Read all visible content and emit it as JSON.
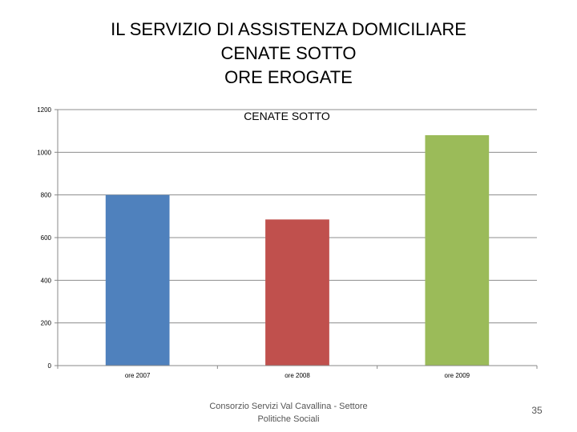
{
  "slide": {
    "title_lines": [
      "IL SERVIZIO DI ASSISTENZA DOMICILIARE",
      "CENATE SOTTO",
      "ORE EROGATE"
    ],
    "footer": "Consorzio Servizi Val Cavallina - Settore Politiche Sociali",
    "page_number": "35"
  },
  "chart_data": {
    "type": "bar",
    "title": "CENATE SOTTO",
    "categories": [
      "ore 2007",
      "ore 2008",
      "ore 2009"
    ],
    "values": [
      800,
      685,
      1080
    ],
    "colors": [
      "#4f81bd",
      "#c0504d",
      "#9bbb59"
    ],
    "ylim": [
      0,
      1200
    ],
    "yticks": [
      "0",
      "200",
      "400",
      "600",
      "800",
      "1000",
      "1200"
    ],
    "grid": true,
    "legend": "none"
  }
}
